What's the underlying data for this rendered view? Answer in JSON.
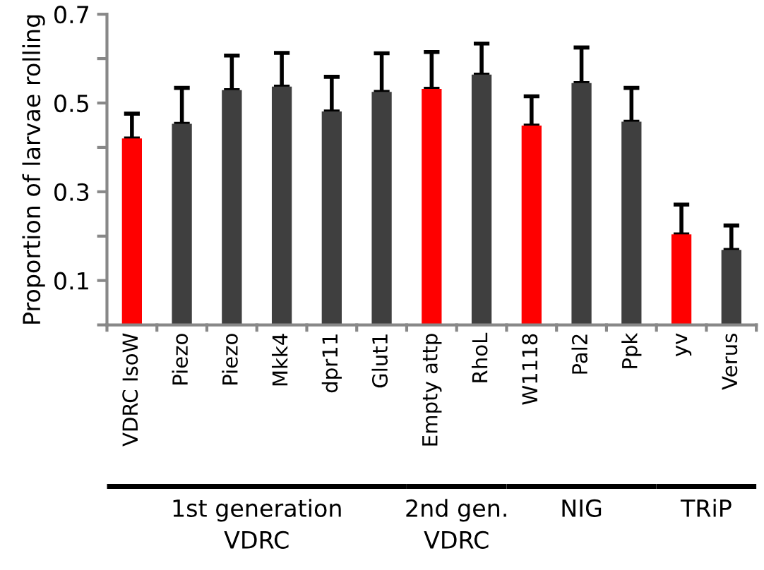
{
  "chart_data": {
    "type": "bar",
    "ylabel": "Proportion of larvae rolling",
    "categories": [
      "VDRC IsoW",
      "Piezo",
      "Piezo",
      "Mkk4",
      "dpr11",
      "Glut1",
      "Empty attp",
      "RhoL",
      "W1118",
      "Pal2",
      "Ppk",
      "yv",
      "Verus"
    ],
    "values": [
      0.42,
      0.453,
      0.529,
      0.537,
      0.481,
      0.525,
      0.532,
      0.564,
      0.449,
      0.545,
      0.458,
      0.204,
      0.169
    ],
    "colors": [
      "#ff0000",
      "#3f3f3f",
      "#3f3f3f",
      "#3f3f3f",
      "#3f3f3f",
      "#3f3f3f",
      "#ff0000",
      "#3f3f3f",
      "#ff0000",
      "#3f3f3f",
      "#3f3f3f",
      "#ff0000",
      "#3f3f3f"
    ],
    "errors": [
      [
        0.42,
        0.476
      ],
      [
        0.453,
        0.534
      ],
      [
        0.529,
        0.607
      ],
      [
        0.537,
        0.613
      ],
      [
        0.481,
        0.559
      ],
      [
        0.525,
        0.612
      ],
      [
        0.532,
        0.615
      ],
      [
        0.564,
        0.634
      ],
      [
        0.449,
        0.515
      ],
      [
        0.545,
        0.625
      ],
      [
        0.458,
        0.534
      ],
      [
        0.204,
        0.271
      ],
      [
        0.169,
        0.224
      ]
    ],
    "ylim": [
      0,
      0.7
    ],
    "yticks": [
      {
        "value": 0,
        "label": null
      },
      0.1,
      {
        "value": 0.2,
        "label": null
      },
      0.3,
      {
        "value": 0.4,
        "label": null
      },
      0.5,
      {
        "value": 0.6,
        "label": null
      },
      0.7
    ],
    "annotations": [
      "1st generation\nVDRC",
      "2nd gen.\nVDRC",
      "NIG",
      "TRiP"
    ],
    "grid": false,
    "legend": false
  }
}
